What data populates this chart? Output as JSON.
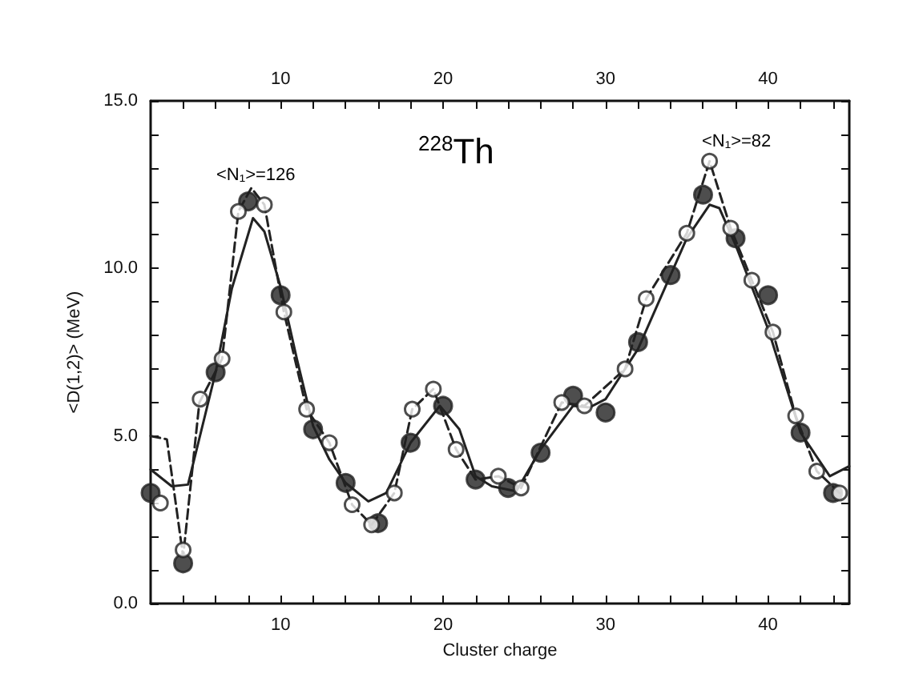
{
  "chart_data": {
    "type": "scatter",
    "xlabel": "Cluster charge",
    "ylabel": "<D(1,2)> (MeV)",
    "annotations": [
      "<N₁>=126",
      "<N₁>=82",
      "$^{228}$Th"
    ],
    "xlim": [
      2,
      45
    ],
    "xticks": [
      {
        "value": 4,
        "label": null
      },
      {
        "value": 6,
        "label": null
      },
      {
        "value": 8,
        "label": null
      },
      10,
      {
        "value": 12,
        "label": null
      },
      {
        "value": 14,
        "label": null
      },
      {
        "value": 16,
        "label": null
      },
      {
        "value": 18,
        "label": null
      },
      20,
      {
        "value": 22,
        "label": null
      },
      {
        "value": 24,
        "label": null
      },
      {
        "value": 26,
        "label": null
      },
      {
        "value": 28,
        "label": null
      },
      30,
      {
        "value": 32,
        "label": null
      },
      {
        "value": 34,
        "label": null
      },
      {
        "value": 36,
        "label": null
      },
      {
        "value": 38,
        "label": null
      },
      40,
      {
        "value": 42,
        "label": null
      },
      {
        "value": 44,
        "label": null
      }
    ],
    "x2lim": [
      2,
      45
    ],
    "x2ticks": [
      {
        "value": 4,
        "label": null
      },
      {
        "value": 6,
        "label": null
      },
      {
        "value": 8,
        "label": null
      },
      10,
      {
        "value": 12,
        "label": null
      },
      {
        "value": 14,
        "label": null
      },
      {
        "value": 16,
        "label": null
      },
      {
        "value": 18,
        "label": null
      },
      20,
      {
        "value": 22,
        "label": null
      },
      {
        "value": 24,
        "label": null
      },
      {
        "value": 26,
        "label": null
      },
      {
        "value": 28,
        "label": null
      },
      30,
      {
        "value": 32,
        "label": null
      },
      {
        "value": 34,
        "label": null
      },
      {
        "value": 36,
        "label": null
      },
      {
        "value": 38,
        "label": null
      },
      40,
      {
        "value": 42,
        "label": null
      },
      {
        "value": 44,
        "label": null
      }
    ],
    "ylim": [
      0,
      15
    ],
    "yticks": [
      {
        "value": 0,
        "label": "0.0"
      },
      {
        "value": 1,
        "label": null
      },
      {
        "value": 2,
        "label": null
      },
      {
        "value": 3,
        "label": null
      },
      {
        "value": 4,
        "label": null
      },
      {
        "value": 5,
        "label": "5.0"
      },
      {
        "value": 6,
        "label": null
      },
      {
        "value": 7,
        "label": null
      },
      {
        "value": 8,
        "label": null
      },
      {
        "value": 9,
        "label": null
      },
      {
        "value": 10,
        "label": "10.0"
      },
      {
        "value": 11,
        "label": null
      },
      {
        "value": 12,
        "label": null
      },
      {
        "value": 13,
        "label": null
      },
      {
        "value": 14,
        "label": null
      },
      {
        "value": 15,
        "label": "15.0"
      }
    ],
    "grid": false,
    "series": [
      {
        "type": "line",
        "color": "#222222",
        "marker": "none",
        "line_style": "solid",
        "x": [
          2,
          3.3,
          4.3,
          6,
          7,
          8.3,
          9,
          10,
          11,
          12,
          13,
          14,
          15.4,
          16.5,
          18,
          19.8,
          21,
          22,
          23,
          24.5,
          26,
          28,
          29,
          30,
          32,
          34,
          35,
          36.4,
          37,
          38,
          40,
          42,
          43.8,
          45
        ],
        "values": [
          4.0,
          3.5,
          3.55,
          6.9,
          9.4,
          11.5,
          11.1,
          9.45,
          7.3,
          5.3,
          4.3,
          3.6,
          3.05,
          3.3,
          4.8,
          5.9,
          5.2,
          3.8,
          3.5,
          3.35,
          4.6,
          5.9,
          5.85,
          6.1,
          7.6,
          9.8,
          10.9,
          11.9,
          11.8,
          10.7,
          8.2,
          5.1,
          3.8,
          4.1
        ]
      },
      {
        "type": "line",
        "color": "#222222",
        "marker": "none",
        "line_style": "dashed",
        "x": [
          2,
          3,
          4,
          5,
          6.4,
          7.4,
          8.2,
          9,
          10.2,
          11.6,
          13,
          14.4,
          15.6,
          17,
          18.1,
          19.4,
          20.8,
          22,
          23.4,
          24.8,
          27.3,
          28.7,
          31.2,
          32.5,
          35,
          36.4,
          37.7,
          39,
          40.3,
          41.7,
          43,
          44.4
        ],
        "values": [
          5.0,
          4.9,
          1.4,
          6.0,
          7.3,
          11.7,
          12.4,
          11.9,
          8.7,
          5.8,
          4.8,
          2.95,
          2.35,
          3.3,
          5.8,
          6.4,
          4.6,
          3.7,
          3.8,
          3.45,
          6.0,
          5.9,
          7.0,
          9.1,
          11.05,
          13.2,
          11.2,
          9.65,
          8.1,
          5.6,
          3.95,
          3.3
        ]
      },
      {
        "type": "scatter",
        "color": "#222222",
        "marker": "circle",
        "x": [
          2,
          4,
          6,
          8,
          10,
          12,
          14,
          16,
          18,
          20,
          22,
          24,
          26,
          28,
          30,
          32,
          34,
          36,
          38,
          40,
          42,
          44
        ],
        "values": [
          3.3,
          1.2,
          6.9,
          12.0,
          9.2,
          5.2,
          3.6,
          2.4,
          4.8,
          5.9,
          3.7,
          3.45,
          4.5,
          6.2,
          5.7,
          7.8,
          9.8,
          12.2,
          10.9,
          9.2,
          5.1,
          3.3
        ]
      },
      {
        "type": "scatter",
        "color": "#ffffff",
        "marker": "circle",
        "x": [
          2.6,
          4,
          5.05,
          6.4,
          7.4,
          9,
          10.2,
          11.6,
          13,
          14.4,
          15.6,
          17,
          18.1,
          19.4,
          20.8,
          23.4,
          24.8,
          27.3,
          28.7,
          31.2,
          32.5,
          35,
          36.4,
          37.7,
          39,
          40.3,
          41.7,
          43,
          44.4
        ],
        "values": [
          3.0,
          1.6,
          6.1,
          7.3,
          11.7,
          11.9,
          8.7,
          5.8,
          4.8,
          2.95,
          2.35,
          3.3,
          5.8,
          6.4,
          4.6,
          3.8,
          3.45,
          6.0,
          5.9,
          7.0,
          9.1,
          11.05,
          13.2,
          11.2,
          9.65,
          8.1,
          5.6,
          3.95,
          3.3
        ]
      }
    ]
  }
}
